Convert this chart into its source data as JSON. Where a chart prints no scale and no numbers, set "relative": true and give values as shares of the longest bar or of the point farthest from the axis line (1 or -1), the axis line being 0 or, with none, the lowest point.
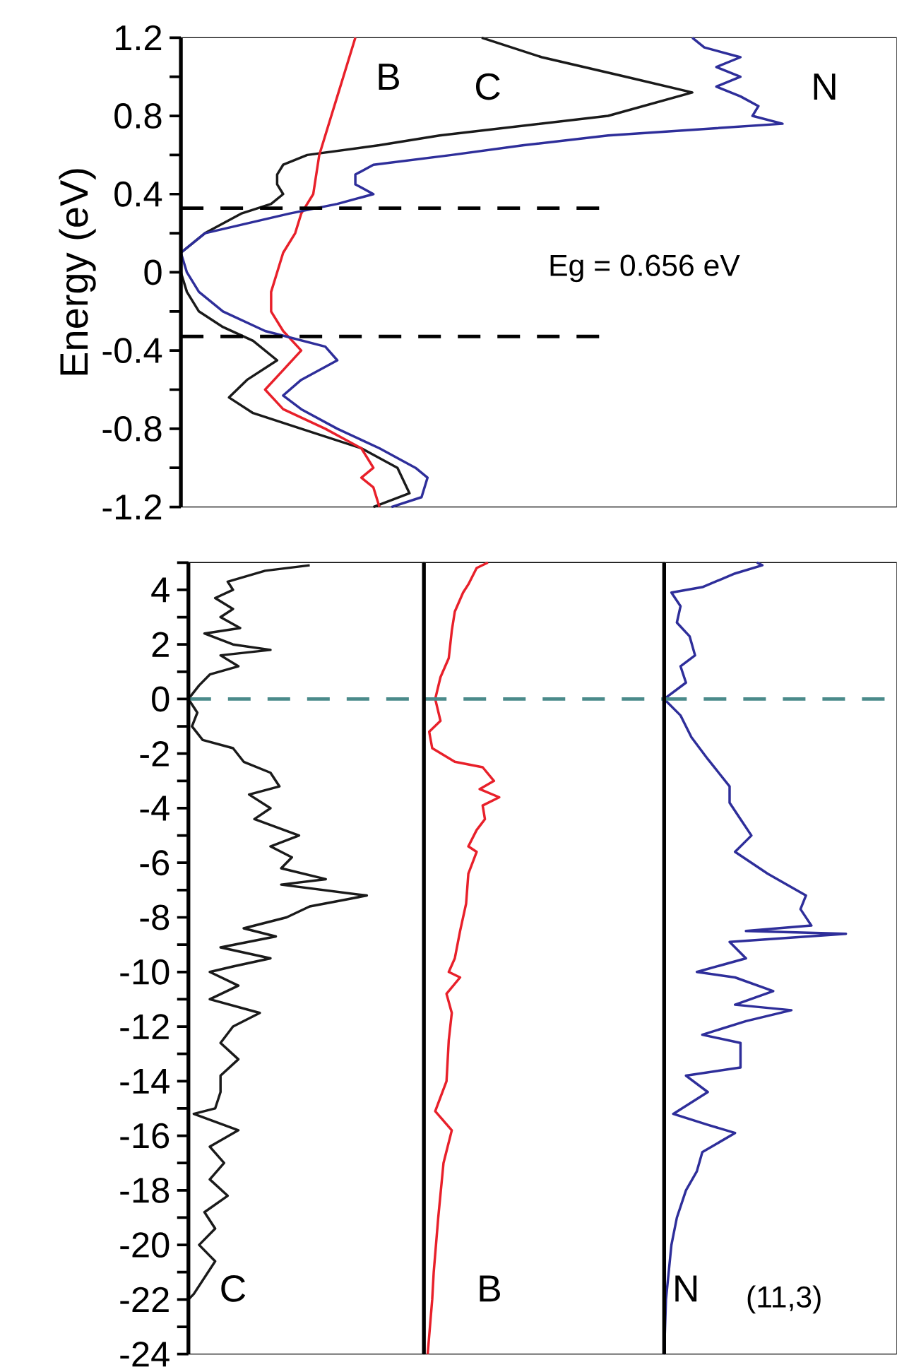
{
  "chart_data": [
    {
      "type": "line",
      "orientation": "horizontal",
      "relative": true,
      "ylabel": "Energy (eV)",
      "ylim": [
        -1.2,
        1.2
      ],
      "yticks": [
        -1.2,
        {
          "value": -1.0,
          "label": null
        },
        -0.8,
        {
          "value": -0.6,
          "label": null
        },
        -0.4,
        {
          "value": -0.2,
          "label": null
        },
        0,
        {
          "value": 0.2,
          "label": null
        },
        0.4,
        {
          "value": 0.6,
          "label": null
        },
        0.8,
        {
          "value": 1.0,
          "label": null
        },
        1.2
      ],
      "series": [
        {
          "name": "C",
          "color": "#1a1a1a",
          "x": [
            -1.2,
            -1.13,
            -1.0,
            -0.9,
            -0.8,
            -0.72,
            -0.64,
            -0.55,
            -0.45,
            -0.35,
            -0.28,
            -0.2,
            -0.1,
            0,
            0.1,
            0.2,
            0.3,
            0.35,
            0.4,
            0.45,
            0.5,
            0.55,
            0.6,
            0.65,
            0.7,
            0.8,
            0.92,
            1.0,
            1.1,
            1.2
          ],
          "values": [
            0.32,
            0.38,
            0.36,
            0.3,
            0.2,
            0.12,
            0.08,
            0.11,
            0.16,
            0.12,
            0.07,
            0.03,
            0.01,
            0.0,
            0.0,
            0.04,
            0.1,
            0.15,
            0.17,
            0.16,
            0.16,
            0.17,
            0.21,
            0.33,
            0.43,
            0.71,
            0.85,
            0.74,
            0.6,
            0.5
          ]
        },
        {
          "name": "B",
          "color": "#e8202a",
          "x": [
            -1.2,
            -1.1,
            -1.05,
            -1.0,
            -0.9,
            -0.8,
            -0.7,
            -0.6,
            -0.5,
            -0.4,
            -0.3,
            -0.2,
            -0.1,
            0,
            0.1,
            0.2,
            0.3,
            0.4,
            0.6,
            0.7,
            0.8,
            0.9,
            1.0,
            1.2
          ],
          "values": [
            0.33,
            0.32,
            0.3,
            0.32,
            0.3,
            0.24,
            0.17,
            0.14,
            0.17,
            0.2,
            0.17,
            0.15,
            0.15,
            0.16,
            0.17,
            0.19,
            0.2,
            0.22,
            0.23,
            0.24,
            0.25,
            0.26,
            0.27,
            0.29
          ]
        },
        {
          "name": "N",
          "color": "#2e2e9a",
          "x": [
            -1.2,
            -1.15,
            -1.05,
            -1.0,
            -0.9,
            -0.8,
            -0.7,
            -0.63,
            -0.55,
            -0.45,
            -0.38,
            -0.3,
            -0.2,
            -0.1,
            0,
            0.1,
            0.2,
            0.3,
            0.35,
            0.4,
            0.45,
            0.5,
            0.55,
            0.6,
            0.65,
            0.7,
            0.76,
            0.8,
            0.85,
            0.9,
            0.95,
            1.0,
            1.05,
            1.1,
            1.15,
            1.2
          ],
          "values": [
            0.35,
            0.4,
            0.41,
            0.39,
            0.33,
            0.26,
            0.2,
            0.17,
            0.2,
            0.26,
            0.24,
            0.14,
            0.07,
            0.03,
            0.01,
            0.0,
            0.04,
            0.18,
            0.26,
            0.32,
            0.29,
            0.29,
            0.32,
            0.45,
            0.57,
            0.71,
            1.0,
            0.95,
            0.96,
            0.93,
            0.89,
            0.93,
            0.89,
            0.93,
            0.87,
            0.85
          ]
        }
      ],
      "ref_lines": [
        {
          "axis": "y",
          "value": 0.328,
          "color": "#000000",
          "line_style": "dashed"
        },
        {
          "axis": "y",
          "value": -0.328,
          "color": "#000000",
          "line_style": "dashed"
        }
      ],
      "annotations": [
        "Eg = 0.656 eV"
      ]
    },
    {
      "type": "line",
      "orientation": "horizontal",
      "relative": true,
      "tick_labels": "y",
      "ylim": [
        -24,
        5
      ],
      "yticks": [
        -24,
        {
          "value": -23,
          "label": null
        },
        -22,
        {
          "value": -21,
          "label": null
        },
        -20,
        {
          "value": -19,
          "label": null
        },
        -18,
        {
          "value": -17,
          "label": null
        },
        -16,
        {
          "value": -15,
          "label": null
        },
        -14,
        {
          "value": -13,
          "label": null
        },
        -12,
        {
          "value": -11,
          "label": null
        },
        -10,
        {
          "value": -9,
          "label": null
        },
        -8,
        {
          "value": -7,
          "label": null
        },
        -6,
        {
          "value": -5,
          "label": null
        },
        -4,
        {
          "value": -3,
          "label": null
        },
        -2,
        {
          "value": -1,
          "label": null
        },
        0,
        {
          "value": 1,
          "label": null
        },
        2,
        {
          "value": 3,
          "label": null
        },
        4,
        {
          "value": 5,
          "label": null
        }
      ],
      "series": [
        {
          "name": "C",
          "color": "#1a1a1a",
          "x": [
            4.9,
            4.7,
            4.3,
            4.0,
            3.7,
            3.3,
            3.0,
            2.6,
            2.4,
            2.0,
            1.8,
            1.6,
            1.2,
            0.9,
            0.5,
            0,
            -0.5,
            -1.0,
            -1.5,
            -1.8,
            -2.3,
            -2.7,
            -3.2,
            -3.5,
            -4.0,
            -4.4,
            -5.0,
            -5.4,
            -5.8,
            -6.2,
            -6.6,
            -6.8,
            -7.2,
            -7.6,
            -8.0,
            -8.4,
            -8.7,
            -9.1,
            -9.5,
            -9.8,
            -10.0,
            -10.5,
            -11.0,
            -11.5,
            -12.0,
            -12.6,
            -13.2,
            -13.8,
            -14.4,
            -15.0,
            -15.2,
            -15.8,
            -16.4,
            -17.0,
            -17.6,
            -18.2,
            -18.8,
            -19.4,
            -20.0,
            -20.6,
            -21.2,
            -21.8,
            -22.0
          ],
          "values": [
            0.68,
            0.43,
            0.22,
            0.25,
            0.15,
            0.25,
            0.18,
            0.29,
            0.09,
            0.25,
            0.46,
            0.18,
            0.28,
            0.12,
            0.06,
            0.0,
            0.05,
            0.02,
            0.08,
            0.25,
            0.31,
            0.46,
            0.51,
            0.34,
            0.46,
            0.37,
            0.62,
            0.46,
            0.58,
            0.52,
            0.77,
            0.52,
            1.0,
            0.68,
            0.55,
            0.31,
            0.49,
            0.18,
            0.46,
            0.25,
            0.12,
            0.28,
            0.12,
            0.4,
            0.25,
            0.18,
            0.28,
            0.18,
            0.18,
            0.15,
            0.03,
            0.28,
            0.12,
            0.2,
            0.12,
            0.22,
            0.09,
            0.15,
            0.06,
            0.15,
            0.09,
            0.03,
            0.0
          ]
        }
      ],
      "ref_lines": [
        {
          "axis": "y",
          "value": 0,
          "color": "#4a8a8a",
          "line_style": "dashed"
        }
      ]
    },
    {
      "type": "line",
      "orientation": "horizontal",
      "relative": true,
      "tick_labels": false,
      "ylim": [
        -24,
        5
      ],
      "series": [
        {
          "name": "B",
          "color": "#e8202a",
          "x": [
            5.0,
            4.8,
            4.2,
            3.9,
            3.2,
            2.5,
            1.5,
            0.8,
            0,
            -0.8,
            -1.2,
            -1.8,
            -2.3,
            -2.5,
            -3.0,
            -3.3,
            -3.6,
            -3.9,
            -4.4,
            -4.8,
            -5.4,
            -5.6,
            -6.4,
            -7.5,
            -8.5,
            -9.5,
            -10.0,
            -10.2,
            -10.8,
            -11.5,
            -12.5,
            -14.0,
            -15.1,
            -15.8,
            -17.0,
            -19.0,
            -21.0,
            -22.0,
            -24.0
          ],
          "values": [
            0.85,
            0.7,
            0.59,
            0.52,
            0.41,
            0.37,
            0.33,
            0.22,
            0.15,
            0.22,
            0.07,
            0.11,
            0.41,
            0.78,
            0.93,
            0.74,
            1.0,
            0.78,
            0.81,
            0.7,
            0.59,
            0.7,
            0.59,
            0.56,
            0.48,
            0.41,
            0.33,
            0.48,
            0.3,
            0.37,
            0.33,
            0.3,
            0.15,
            0.37,
            0.26,
            0.19,
            0.13,
            0.11,
            0.05
          ]
        }
      ],
      "ref_lines": [
        {
          "axis": "y",
          "value": 0,
          "color": "#4a8a8a",
          "line_style": "dashed"
        }
      ]
    },
    {
      "type": "line",
      "orientation": "horizontal",
      "relative": true,
      "tick_labels": false,
      "ylim": [
        -24,
        5
      ],
      "series": [
        {
          "name": "N",
          "color": "#2e2e9a",
          "x": [
            5.0,
            4.9,
            4.6,
            4.1,
            3.9,
            3.4,
            2.8,
            2.3,
            1.6,
            1.2,
            0.6,
            0,
            -0.6,
            -1.4,
            -2.2,
            -2.7,
            -3.2,
            -3.8,
            -4.4,
            -5.0,
            -5.6,
            -6.4,
            -7.2,
            -7.7,
            -8.3,
            -8.5,
            -8.6,
            -8.9,
            -9.5,
            -10.0,
            -10.2,
            -10.7,
            -11.2,
            -11.4,
            -11.8,
            -12.3,
            -12.6,
            -13.5,
            -13.8,
            -14.4,
            -15.2,
            -15.6,
            -15.9,
            -16.6,
            -17.3,
            -18.0,
            -19.0,
            -20.0,
            -22.0,
            -24.0
          ],
          "values": [
            0.51,
            0.54,
            0.39,
            0.21,
            0.04,
            0.09,
            0.07,
            0.14,
            0.17,
            0.09,
            0.12,
            0.0,
            0.09,
            0.15,
            0.24,
            0.3,
            0.36,
            0.36,
            0.42,
            0.48,
            0.39,
            0.57,
            0.78,
            0.75,
            0.81,
            0.45,
            1.0,
            0.36,
            0.45,
            0.18,
            0.39,
            0.6,
            0.39,
            0.7,
            0.45,
            0.21,
            0.42,
            0.42,
            0.12,
            0.24,
            0.05,
            0.24,
            0.39,
            0.21,
            0.18,
            0.12,
            0.07,
            0.04,
            0.01,
            0.0
          ]
        }
      ],
      "ref_lines": [
        {
          "axis": "y",
          "value": 0,
          "color": "#4a8a8a",
          "line_style": "dashed"
        }
      ],
      "annotations": [
        "(11,3)"
      ]
    }
  ]
}
